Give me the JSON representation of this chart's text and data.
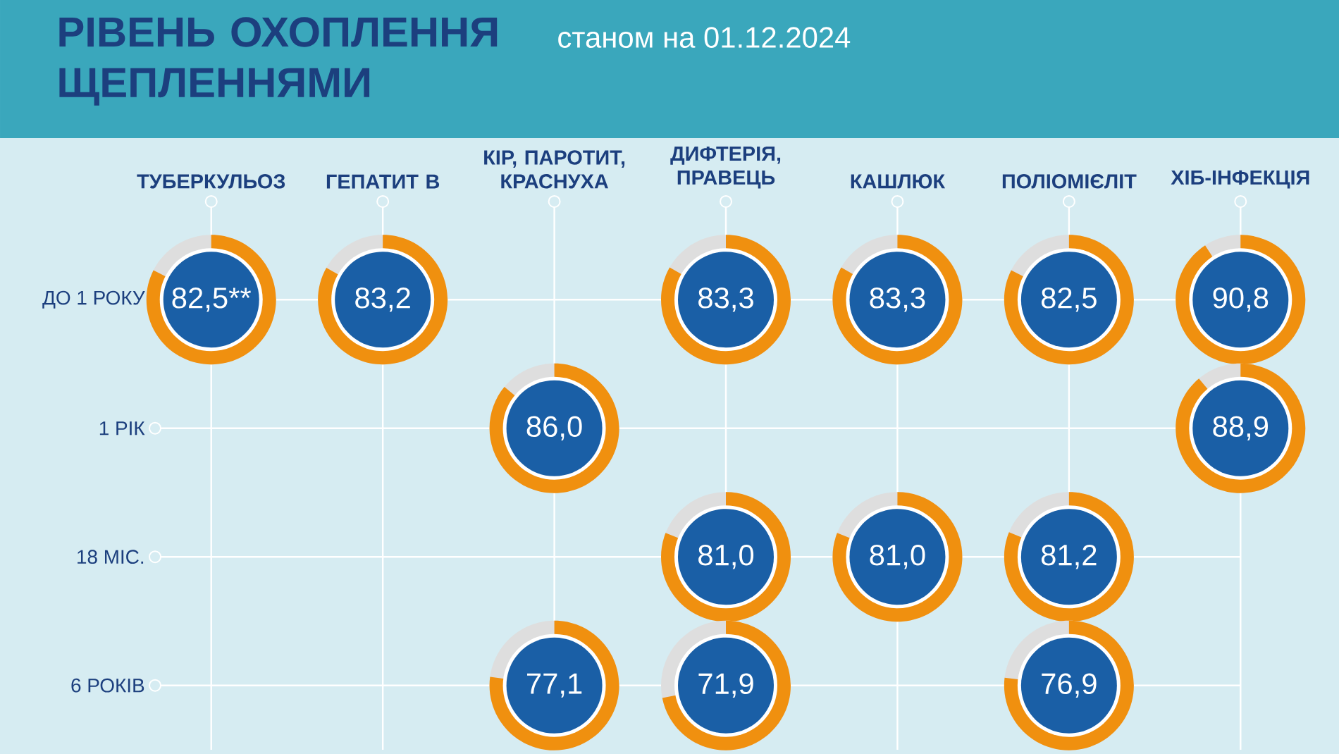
{
  "chart_data": {
    "type": "heatmap",
    "title": "РІВЕНЬ ОХОПЛЕННЯ ЩЕПЛЕННЯМИ",
    "subtitle": "станом на 01.12.2024",
    "categories": [
      "ТУБЕРКУЛЬОЗ",
      "ГЕПАТИТ В",
      "КІР, ПАРОТИТ, КРАСНУХА",
      "ДИФТЕРІЯ, ПРАВЕЦЬ",
      "КАШЛЮК",
      "ПОЛІОМІЄЛІТ",
      "ХІБ-ІНФЕКЦІЯ"
    ],
    "y_categories": [
      "ДО 1 РОКУ",
      "1 РІК",
      "18 МІС.",
      "6 РОКІВ"
    ],
    "cells": [
      [
        82.5,
        83.2,
        null,
        83.3,
        83.3,
        82.5,
        90.8
      ],
      [
        null,
        null,
        86.0,
        null,
        null,
        null,
        88.9
      ],
      [
        null,
        null,
        null,
        81.0,
        81.0,
        81.2,
        null
      ],
      [
        null,
        null,
        77.1,
        71.9,
        null,
        76.9,
        null
      ]
    ],
    "cell_labels": [
      [
        "82,5**",
        "83,2",
        null,
        "83,3",
        "83,3",
        "82,5",
        "90,8"
      ],
      [
        null,
        null,
        "86,0",
        null,
        null,
        null,
        "88,9"
      ],
      [
        null,
        null,
        null,
        "81,0",
        "81,0",
        "81,2",
        null
      ],
      [
        null,
        null,
        "77,1",
        "71,9",
        null,
        "76,9",
        null
      ]
    ],
    "grid": true
  }
}
